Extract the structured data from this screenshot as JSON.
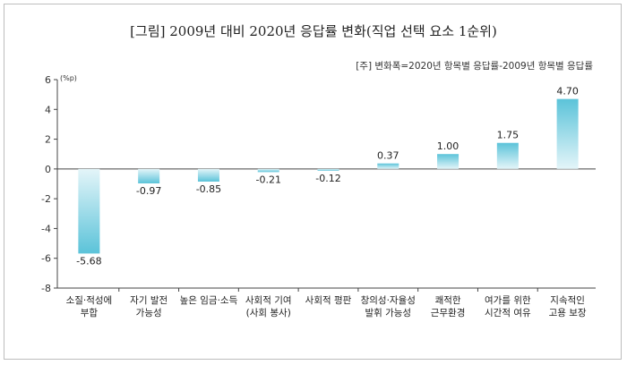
{
  "title": "[그림] 2009년 대비 2020년 응답률 변화(직업 선택 요소 1순위)",
  "note": "[주] 변화폭=2020년 항목별 응답률-2009년 항목별 응답률",
  "chart_data": {
    "type": "bar",
    "title": "[그림] 2009년 대비 2020년 응답률 변화(직업 선택 요소 1순위)",
    "unit": "(%p)",
    "ylim": [
      -8,
      6
    ],
    "yticks": [
      6,
      4,
      2,
      0,
      -2,
      -4,
      -6,
      -8
    ],
    "categories": [
      [
        "소질·적성에",
        "부합"
      ],
      [
        "자기 발전",
        "가능성"
      ],
      [
        "높은 임금·소득"
      ],
      [
        "사회적 기여",
        "(사회 봉사)"
      ],
      [
        "사회적 평판"
      ],
      [
        "창의성·자율성",
        "발휘 가능성"
      ],
      [
        "쾌적한",
        "근무환경"
      ],
      [
        "여가를 위한",
        "시간적 여유"
      ],
      [
        "지속적인",
        "고용 보장"
      ]
    ],
    "values": [
      -5.68,
      -0.97,
      -0.85,
      -0.21,
      -0.12,
      0.37,
      1.0,
      1.75,
      4.7
    ],
    "value_labels": [
      "-5.68",
      "-0.97",
      "-0.85",
      "-0.21",
      "-0.12",
      "0.37",
      "1.00",
      "1.75",
      "4.70"
    ],
    "bar_color": "#5bc3d9",
    "bar_color_light": "#e4f5f9",
    "grid": false
  }
}
